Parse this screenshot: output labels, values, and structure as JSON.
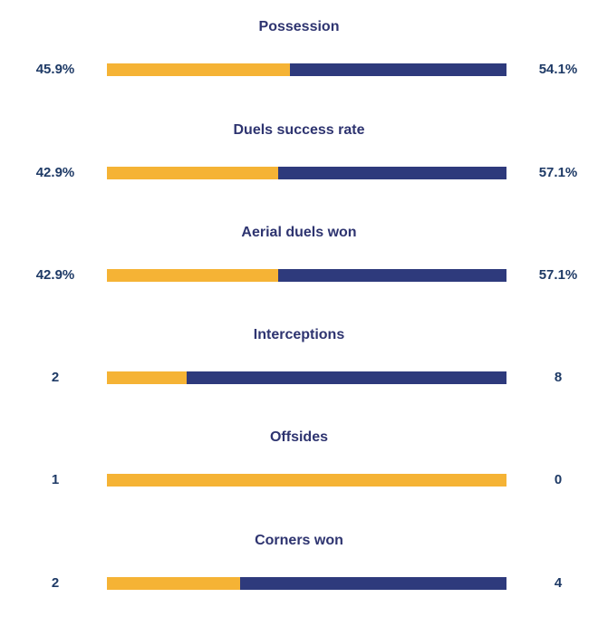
{
  "colors": {
    "home": "#f5b335",
    "away": "#2e3a7c",
    "title_text": "#2e3470",
    "value_text": "#1e3a66"
  },
  "chart_data": {
    "type": "bar",
    "orientation": "horizontal-stacked-comparison",
    "categories": [
      "Possession",
      "Duels success rate",
      "Aerial duels won",
      "Interceptions",
      "Offsides",
      "Corners won"
    ],
    "series": [
      {
        "name": "home",
        "values": [
          45.9,
          42.9,
          42.9,
          2,
          1,
          2
        ]
      },
      {
        "name": "away",
        "values": [
          54.1,
          57.1,
          57.1,
          8,
          0,
          4
        ]
      }
    ],
    "stats": [
      {
        "title": "Possession",
        "left": "45.9%",
        "right": "54.1%",
        "left_value": 45.9,
        "right_value": 54.1
      },
      {
        "title": "Duels success rate",
        "left": "42.9%",
        "right": "57.1%",
        "left_value": 42.9,
        "right_value": 57.1
      },
      {
        "title": "Aerial duels won",
        "left": "42.9%",
        "right": "57.1%",
        "left_value": 42.9,
        "right_value": 57.1
      },
      {
        "title": "Interceptions",
        "left": "2",
        "right": "8",
        "left_value": 2,
        "right_value": 8
      },
      {
        "title": "Offsides",
        "left": "1",
        "right": "0",
        "left_value": 1,
        "right_value": 0
      },
      {
        "title": "Corners won",
        "left": "2",
        "right": "4",
        "left_value": 2,
        "right_value": 4
      }
    ]
  }
}
